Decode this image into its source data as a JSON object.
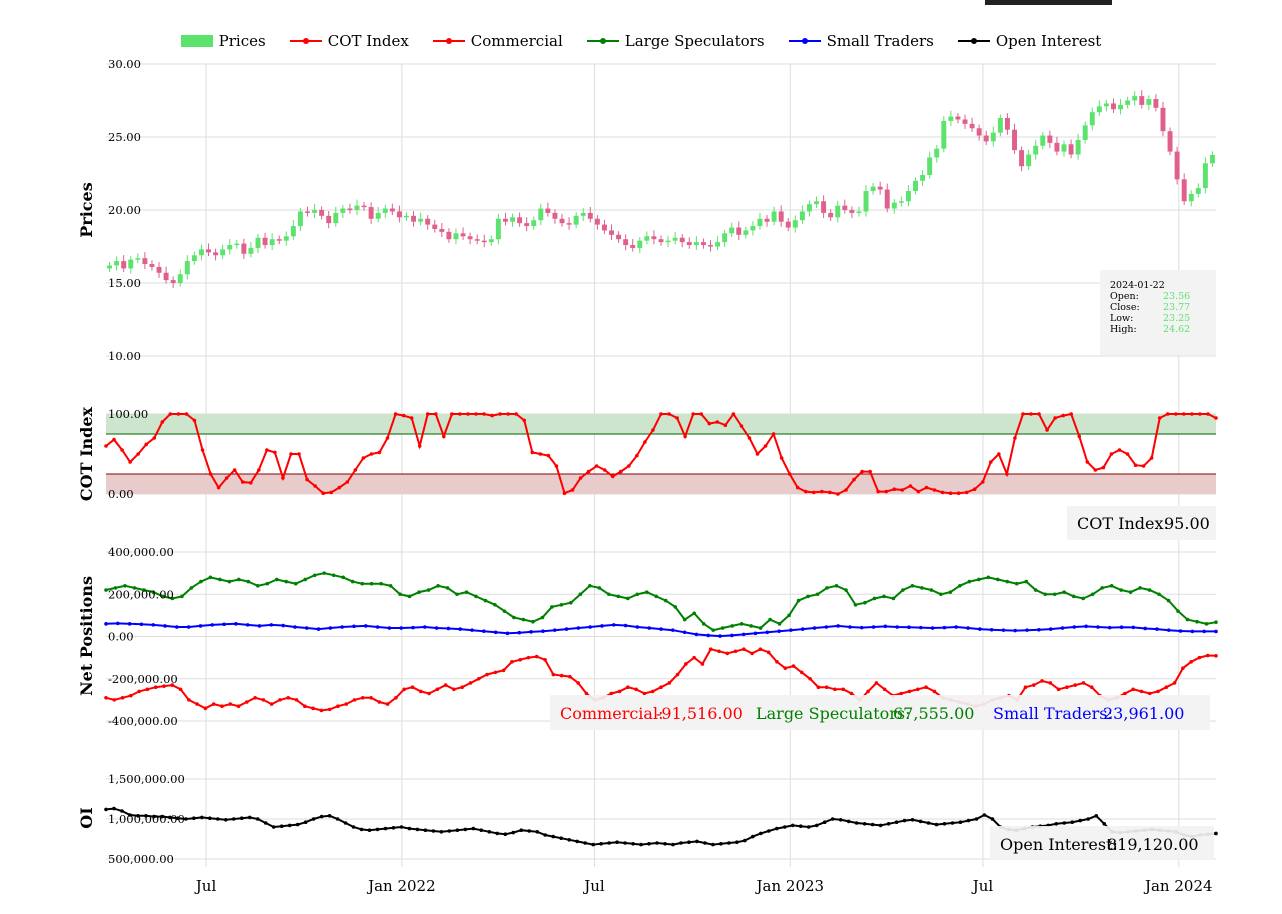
{
  "legend": [
    {
      "label": "Prices",
      "kind": "box",
      "color": "#5ce36e"
    },
    {
      "label": "COT Index",
      "kind": "line",
      "color": "#ff0000"
    },
    {
      "label": "Commercial",
      "kind": "line",
      "color": "#ff0000"
    },
    {
      "label": "Large Speculators",
      "kind": "line",
      "color": "#008000"
    },
    {
      "label": "Small Traders",
      "kind": "line",
      "color": "#0000ff"
    },
    {
      "label": "Open Interest",
      "kind": "line",
      "color": "#000000"
    }
  ],
  "colors": {
    "up": "#5ce36e",
    "down": "#e0608c",
    "commercial": "#ff0000",
    "large": "#008000",
    "small": "#0000ff",
    "oi": "#000000",
    "cot_band_high": "#cce5cc",
    "cot_band_low": "#e8cccc"
  },
  "ohlc_box": {
    "date": "2024-01-22",
    "open_label": "Open:",
    "open": "23.56",
    "close_label": "Close:",
    "close": "23.77",
    "low_label": "Low:",
    "low": "23.25",
    "high_label": "High:",
    "high": "24.62"
  },
  "readouts": {
    "cot_label": "COT Index:",
    "cot_value": "95.00",
    "commercial_label": "Commercial:",
    "commercial_value": "-91,516.00",
    "large_label": "Large Speculators:",
    "large_value": "67,555.00",
    "small_label": "Small Traders:",
    "small_value": "23,961.00",
    "oi_label": "Open Interest:",
    "oi_value": "819,120.00"
  },
  "chart_data": [
    {
      "type": "candlestick",
      "ylabel": "Prices",
      "yticks": [
        "10.00",
        "15.00",
        "20.00",
        "25.00",
        "30.00"
      ],
      "ylim": [
        10,
        30
      ],
      "x_start": "2021-03-29",
      "x_end": "2024-02-05",
      "xticks": [
        {
          "date": "2021-07-01",
          "label": "Jul"
        },
        {
          "date": "2022-01-01",
          "label": "Jan 2022"
        },
        {
          "date": "2022-07-01",
          "label": "Jul"
        },
        {
          "date": "2023-01-01",
          "label": "Jan 2023"
        },
        {
          "date": "2023-07-01",
          "label": "Jul"
        },
        {
          "date": "2024-01-01",
          "label": "Jan 2024"
        }
      ],
      "close": [
        16.2,
        16.5,
        16.0,
        16.6,
        16.7,
        16.3,
        16.1,
        15.7,
        15.2,
        15.0,
        15.6,
        16.5,
        16.9,
        17.3,
        17.1,
        16.9,
        17.3,
        17.6,
        17.7,
        17.0,
        17.4,
        18.1,
        17.6,
        18.0,
        17.9,
        18.2,
        18.9,
        19.9,
        19.8,
        20.0,
        19.6,
        19.1,
        19.8,
        20.1,
        20.0,
        20.3,
        20.2,
        19.4,
        19.8,
        20.1,
        19.9,
        19.5,
        19.6,
        19.2,
        19.4,
        19.0,
        18.7,
        18.5,
        18.0,
        18.4,
        18.2,
        18.0,
        17.9,
        17.8,
        18.0,
        19.4,
        19.2,
        19.5,
        19.1,
        18.9,
        19.3,
        20.1,
        19.8,
        19.4,
        19.1,
        19.0,
        19.6,
        19.8,
        19.4,
        19.0,
        18.6,
        18.3,
        18.0,
        17.6,
        17.4,
        17.9,
        18.2,
        18.0,
        17.8,
        17.9,
        18.1,
        17.8,
        17.6,
        17.8,
        17.6,
        17.5,
        17.8,
        18.4,
        18.8,
        18.3,
        18.6,
        18.9,
        19.4,
        19.2,
        19.9,
        19.2,
        18.8,
        19.3,
        19.9,
        20.4,
        20.6,
        19.8,
        19.5,
        20.3,
        20.0,
        19.8,
        19.9,
        21.3,
        21.6,
        21.4,
        20.1,
        20.5,
        20.6,
        21.3,
        22.0,
        22.4,
        23.6,
        24.2,
        26.1,
        26.4,
        26.2,
        25.9,
        25.6,
        25.1,
        24.7,
        25.3,
        26.3,
        25.5,
        24.1,
        23.0,
        23.8,
        24.4,
        25.1,
        24.6,
        24.0,
        24.5,
        23.8,
        24.8,
        25.8,
        26.7,
        27.1,
        27.3,
        26.9,
        27.2,
        27.5,
        27.8,
        27.2,
        27.6,
        27.0,
        25.4,
        24.0,
        22.1,
        20.6,
        21.1,
        21.5,
        23.2,
        23.77
      ],
      "note": "one candle per week; approximate"
    },
    {
      "type": "line",
      "ylabel": "COT Index",
      "yticks": [
        "0.00",
        "100.00"
      ],
      "ylim": [
        0,
        100
      ],
      "band_high": [
        75,
        100
      ],
      "band_low": [
        0,
        25
      ],
      "series": [
        {
          "name": "COT Index",
          "values": [
            60,
            68,
            55,
            40,
            50,
            62,
            70,
            90,
            100,
            100,
            100,
            92,
            55,
            25,
            8,
            20,
            30,
            15,
            14,
            30,
            55,
            52,
            20,
            50,
            50,
            18,
            10,
            1,
            2,
            8,
            15,
            30,
            45,
            50,
            52,
            70,
            100,
            98,
            95,
            60,
            100,
            100,
            72,
            100,
            100,
            100,
            100,
            100,
            98,
            100,
            100,
            100,
            92,
            52,
            50,
            48,
            35,
            1,
            5,
            20,
            28,
            35,
            30,
            22,
            28,
            35,
            48,
            65,
            80,
            100,
            100,
            95,
            72,
            100,
            100,
            88,
            90,
            86,
            100,
            85,
            70,
            50,
            60,
            75,
            45,
            25,
            8,
            3,
            2,
            3,
            2,
            0,
            5,
            18,
            28,
            28,
            3,
            3,
            6,
            5,
            10,
            3,
            8,
            5,
            2,
            1,
            1,
            2,
            6,
            15,
            40,
            50,
            25,
            70,
            100,
            100,
            100,
            80,
            95,
            98,
            100,
            72,
            40,
            30,
            33,
            50,
            55,
            50,
            36,
            35,
            45,
            95,
            100,
            100,
            100,
            100,
            100,
            100,
            95
          ]
        }
      ]
    },
    {
      "type": "line",
      "ylabel": "Net Positions",
      "yticks": [
        "-400,000.00",
        "-200,000.00",
        "0.00",
        "200,000.00",
        "400,000.00"
      ],
      "ylim": [
        -400000,
        400000
      ],
      "series": [
        {
          "name": "Commercial",
          "values": [
            -290000,
            -300000,
            -290000,
            -280000,
            -260000,
            -250000,
            -240000,
            -235000,
            -230000,
            -250000,
            -300000,
            -320000,
            -340000,
            -320000,
            -330000,
            -320000,
            -330000,
            -310000,
            -290000,
            -300000,
            -320000,
            -300000,
            -290000,
            -300000,
            -330000,
            -340000,
            -350000,
            -345000,
            -330000,
            -320000,
            -300000,
            -290000,
            -290000,
            -310000,
            -320000,
            -290000,
            -250000,
            -240000,
            -260000,
            -270000,
            -250000,
            -230000,
            -250000,
            -240000,
            -220000,
            -200000,
            -180000,
            -170000,
            -160000,
            -120000,
            -110000,
            -100000,
            -95000,
            -110000,
            -180000,
            -185000,
            -190000,
            -220000,
            -270000,
            -300000,
            -290000,
            -270000,
            -260000,
            -240000,
            -250000,
            -270000,
            -260000,
            -240000,
            -220000,
            -180000,
            -130000,
            -100000,
            -130000,
            -60000,
            -70000,
            -80000,
            -70000,
            -60000,
            -80000,
            -60000,
            -75000,
            -120000,
            -150000,
            -140000,
            -170000,
            -200000,
            -240000,
            -240000,
            -250000,
            -250000,
            -270000,
            -300000,
            -260000,
            -220000,
            -250000,
            -280000,
            -270000,
            -260000,
            -250000,
            -240000,
            -260000,
            -290000,
            -300000,
            -310000,
            -320000,
            -330000,
            -320000,
            -300000,
            -290000,
            -280000,
            -300000,
            -240000,
            -230000,
            -210000,
            -220000,
            -250000,
            -240000,
            -230000,
            -220000,
            -240000,
            -280000,
            -300000,
            -290000,
            -270000,
            -250000,
            -260000,
            -270000,
            -260000,
            -240000,
            -220000,
            -150000,
            -120000,
            -100000,
            -90000,
            -91516
          ]
        },
        {
          "name": "Large Speculators",
          "values": [
            220000,
            230000,
            240000,
            230000,
            220000,
            210000,
            190000,
            180000,
            190000,
            230000,
            260000,
            280000,
            270000,
            260000,
            270000,
            260000,
            240000,
            250000,
            270000,
            260000,
            250000,
            270000,
            290000,
            300000,
            290000,
            280000,
            260000,
            250000,
            250000,
            250000,
            240000,
            200000,
            190000,
            210000,
            220000,
            240000,
            230000,
            200000,
            210000,
            190000,
            170000,
            150000,
            120000,
            90000,
            80000,
            70000,
            90000,
            140000,
            150000,
            160000,
            200000,
            240000,
            230000,
            200000,
            190000,
            180000,
            200000,
            210000,
            190000,
            170000,
            140000,
            80000,
            110000,
            60000,
            30000,
            40000,
            50000,
            60000,
            50000,
            40000,
            80000,
            60000,
            100000,
            170000,
            190000,
            200000,
            230000,
            240000,
            220000,
            150000,
            160000,
            180000,
            190000,
            180000,
            220000,
            240000,
            230000,
            220000,
            200000,
            210000,
            240000,
            260000,
            270000,
            280000,
            270000,
            260000,
            250000,
            260000,
            220000,
            200000,
            200000,
            210000,
            190000,
            180000,
            200000,
            230000,
            240000,
            220000,
            210000,
            230000,
            220000,
            200000,
            170000,
            120000,
            80000,
            70000,
            60000,
            67555
          ]
        },
        {
          "name": "Small Traders",
          "values": [
            60000,
            62000,
            60000,
            58000,
            55000,
            50000,
            45000,
            45000,
            50000,
            55000,
            58000,
            60000,
            55000,
            50000,
            55000,
            52000,
            45000,
            40000,
            35000,
            40000,
            45000,
            48000,
            50000,
            45000,
            40000,
            40000,
            42000,
            45000,
            40000,
            38000,
            35000,
            30000,
            25000,
            20000,
            15000,
            18000,
            22000,
            25000,
            30000,
            35000,
            40000,
            45000,
            50000,
            55000,
            52000,
            45000,
            40000,
            35000,
            30000,
            20000,
            10000,
            5000,
            2000,
            5000,
            10000,
            15000,
            20000,
            25000,
            30000,
            35000,
            40000,
            45000,
            50000,
            45000,
            42000,
            45000,
            48000,
            45000,
            44000,
            42000,
            40000,
            42000,
            45000,
            40000,
            35000,
            32000,
            30000,
            28000,
            30000,
            32000,
            35000,
            40000,
            45000,
            48000,
            45000,
            42000,
            44000,
            43000,
            38000,
            35000,
            30000,
            26000,
            24000,
            24000,
            23961
          ]
        }
      ]
    },
    {
      "type": "line",
      "ylabel": "OI",
      "yticks": [
        "500,000.00",
        "1,000,000.00",
        "1,500,000.00"
      ],
      "ylim": [
        400000,
        1600000
      ],
      "series": [
        {
          "name": "Open Interest",
          "values": [
            1120000,
            1130000,
            1100000,
            1050000,
            1040000,
            1040000,
            1030000,
            1030000,
            1020000,
            1010000,
            1000000,
            1010000,
            1020000,
            1010000,
            1000000,
            990000,
            1000000,
            1010000,
            1020000,
            1000000,
            950000,
            900000,
            910000,
            920000,
            930000,
            960000,
            1000000,
            1030000,
            1040000,
            1000000,
            950000,
            900000,
            870000,
            860000,
            870000,
            880000,
            890000,
            900000,
            880000,
            870000,
            860000,
            850000,
            840000,
            850000,
            860000,
            870000,
            880000,
            860000,
            840000,
            820000,
            810000,
            830000,
            860000,
            850000,
            840000,
            800000,
            780000,
            760000,
            740000,
            720000,
            700000,
            680000,
            690000,
            700000,
            710000,
            700000,
            690000,
            680000,
            690000,
            700000,
            690000,
            680000,
            700000,
            710000,
            720000,
            700000,
            680000,
            690000,
            700000,
            710000,
            730000,
            780000,
            820000,
            850000,
            880000,
            900000,
            920000,
            910000,
            900000,
            920000,
            960000,
            1000000,
            990000,
            970000,
            950000,
            940000,
            930000,
            920000,
            940000,
            960000,
            980000,
            990000,
            970000,
            950000,
            930000,
            940000,
            950000,
            960000,
            980000,
            1000000,
            1050000,
            1000000,
            900000,
            870000,
            860000,
            880000,
            900000,
            910000,
            920000,
            940000,
            950000,
            960000,
            980000,
            1000000,
            1040000,
            940000,
            840000,
            830000,
            840000,
            850000,
            860000,
            870000,
            860000,
            850000,
            840000,
            800000,
            780000,
            800000,
            810000,
            819120
          ]
        }
      ]
    }
  ]
}
